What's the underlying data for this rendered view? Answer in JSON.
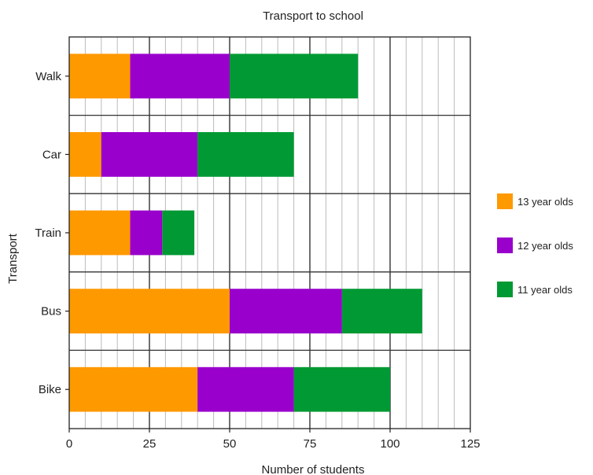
{
  "chart_data": {
    "type": "bar",
    "orientation": "horizontal",
    "stacked": true,
    "title": "Transport to school",
    "xlabel": "Number of students",
    "ylabel": "Transport",
    "xlim": [
      0,
      125
    ],
    "x_ticks": [
      0,
      25,
      50,
      75,
      100,
      125
    ],
    "minor_gridlines_every": 5,
    "grid": true,
    "legend_position": "right",
    "categories": [
      "Walk",
      "Car",
      "Train",
      "Bus",
      "Bike"
    ],
    "series": [
      {
        "name": "13 year olds",
        "color": "#ff9900",
        "values": [
          19,
          10,
          19,
          50,
          40
        ]
      },
      {
        "name": "12 year olds",
        "color": "#9900cc",
        "values": [
          31,
          30,
          10,
          35,
          30
        ]
      },
      {
        "name": "11 year olds",
        "color": "#009933",
        "values": [
          40,
          30,
          10,
          25,
          30
        ]
      }
    ]
  }
}
